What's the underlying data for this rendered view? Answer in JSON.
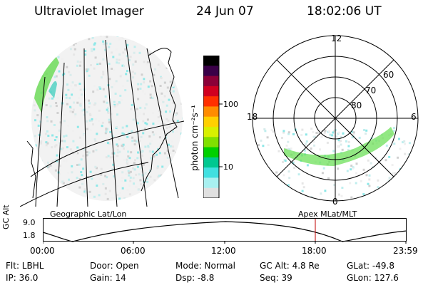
{
  "header": {
    "instrument": "Ultraviolet Imager",
    "date": "24 Jun 07",
    "time": "18:02:06 UT"
  },
  "colorbar": {
    "unit_label": "photon cm⁻²s⁻¹",
    "tick_100": "100",
    "tick_10": "10",
    "colors": [
      "#000000",
      "#3a0048",
      "#8b0038",
      "#d00020",
      "#ff3000",
      "#ff8c00",
      "#ffd000",
      "#d8f000",
      "#80e000",
      "#00d000",
      "#00c890",
      "#40e0e0",
      "#a8f0f0",
      "#e0e0e0"
    ]
  },
  "polar": {
    "hour_labels": {
      "top": "12",
      "left": "18",
      "right": "6",
      "bottom": "0"
    },
    "lat_labels": [
      "60",
      "70",
      "80"
    ]
  },
  "timeline": {
    "axis_title": "GC Alt",
    "y_top": "9.0",
    "y_bottom": "1.8",
    "left_caption": "Geographic Lat/Lon",
    "right_caption": "Apex MLat/MLT",
    "x_ticks": [
      "00:00",
      "06:00",
      "12:00",
      "18:00",
      "23:59"
    ]
  },
  "info": {
    "filter": "Flt: LBHL",
    "door": "Door: Open",
    "mode": "Mode: Normal",
    "gc_alt": "GC Alt: 4.8 Re",
    "glat": "GLat: -49.8",
    "ip": "IP: 36.0",
    "gain": "Gain: 14",
    "dsp": "Dsp:    -8.8",
    "seq": "Seq: 39",
    "glon": "GLon: 127.6"
  }
}
